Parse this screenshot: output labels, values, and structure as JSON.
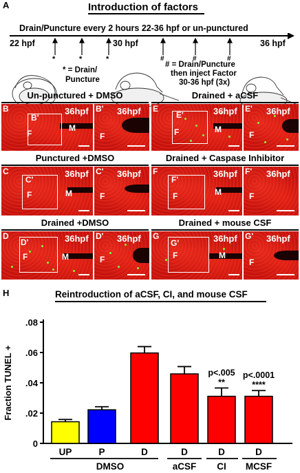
{
  "panelA": {
    "letter": "A",
    "title": "Introduction of factors",
    "timeline_text": "Drain/Puncture every 2 hours 22-36 hpf or un-punctured",
    "t22": "22 hpf",
    "t30": "30 hpf",
    "t36": "36 hpf",
    "star": "*",
    "hash": "#",
    "legend_star": "* = Drain/",
    "legend_star2": "Puncture",
    "legend_hash1": "# = Drain/Puncture",
    "legend_hash2": "then inject Factor",
    "legend_hash3": "30-36 hpf (3x)"
  },
  "panels": {
    "B": {
      "title": "Un-punctured + DMSO",
      "label": "B",
      "zoom": "B'",
      "hpf": "36hpf",
      "F": "F",
      "M": "M"
    },
    "C": {
      "title": "Punctured +DMSO",
      "label": "C",
      "zoom": "C'",
      "hpf": "36hpf",
      "F": "F",
      "M": "M"
    },
    "D": {
      "title": "Drained +DMSO",
      "label": "D",
      "zoom": "D'",
      "hpf": "36hpf",
      "F": "F",
      "M": "M"
    },
    "E": {
      "title": "Drained + aCSF",
      "label": "E",
      "zoom": "E'",
      "hpf": "36hpf",
      "F": "F",
      "M": "M"
    },
    "F": {
      "title": "Drained + Caspase Inhibitor",
      "label": "F",
      "zoom": "F'",
      "hpf": "36hpf",
      "F": "F",
      "M": "M"
    },
    "G": {
      "title": "Drained  + mouse CSF",
      "label": "G",
      "zoom": "G'",
      "hpf": "36hpf",
      "F": "F",
      "M": "M"
    }
  },
  "panelH": {
    "letter": "H"
  },
  "chart_data": {
    "type": "bar",
    "title": "Reintroduction of  aCSF, CI, and mouse CSF",
    "ylabel": "Fraction TUNEL +",
    "ylim": [
      0,
      0.08
    ],
    "yticks": [
      "0",
      ".02",
      ".04",
      ".06",
      ".08"
    ],
    "categories": [
      "UP",
      "P",
      "D",
      "D",
      "D",
      "D"
    ],
    "group_labels": [
      "DMSO",
      "aCSF",
      "CI",
      "MCSF"
    ],
    "values": [
      0.0143,
      0.0222,
      0.0597,
      0.0459,
      0.0311,
      0.0311
    ],
    "errors": [
      0.0015,
      0.002,
      0.0042,
      0.0048,
      0.0055,
      0.0038
    ],
    "colors": [
      "#ffff00",
      "#0000ff",
      "#ff0000",
      "#ff0000",
      "#ff0000",
      "#ff0000"
    ],
    "annotations": [
      {
        "bar": 4,
        "p": "p<.005",
        "stars": "**"
      },
      {
        "bar": 5,
        "p": "p<.0001",
        "stars": "****"
      }
    ]
  }
}
